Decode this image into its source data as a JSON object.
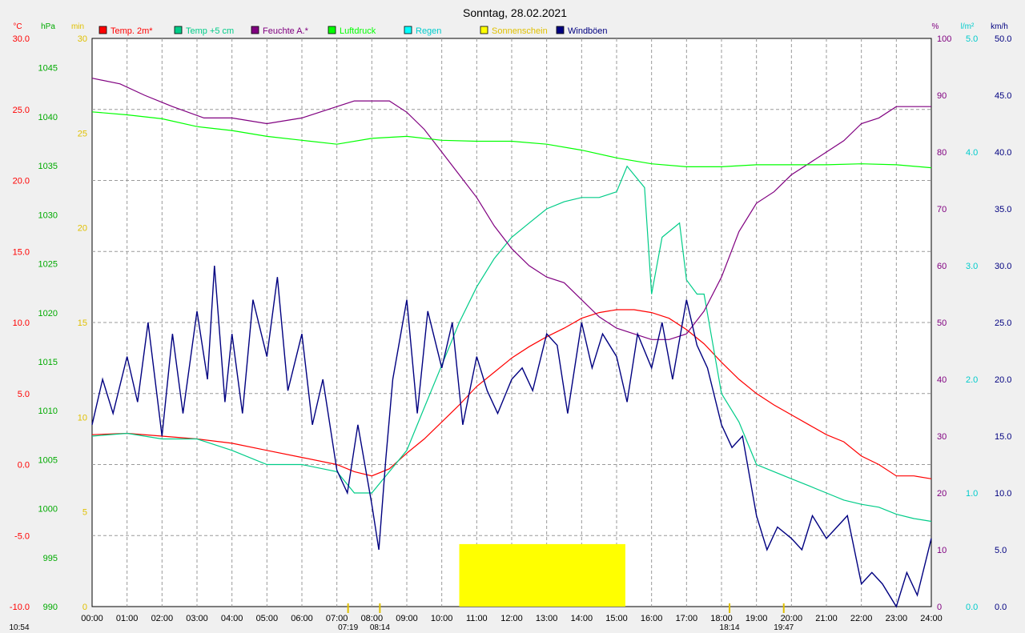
{
  "chart_data": {
    "type": "line",
    "title": "Sonntag, 28.02.2021",
    "x_ticks": [
      "00:00",
      "01:00",
      "02:00",
      "03:00",
      "04:00",
      "05:00",
      "06:00",
      "07:00",
      "08:00",
      "09:00",
      "10:00",
      "11:00",
      "12:00",
      "13:00",
      "14:00",
      "15:00",
      "16:00",
      "17:00",
      "18:00",
      "19:00",
      "20:00",
      "21:00",
      "22:00",
      "23:00",
      "24:00"
    ],
    "x_range_hours": [
      0,
      24
    ],
    "grid": true,
    "legend": [
      {
        "label": "Temp. 2m*",
        "color": "#ff0000"
      },
      {
        "label": "Temp +5 cm",
        "color": "#00cc88"
      },
      {
        "label": "Feuchte A.*",
        "color": "#800080"
      },
      {
        "label": "Luftdruck",
        "color": "#00ff00"
      },
      {
        "label": "Regen",
        "color": "#00ffff"
      },
      {
        "label": "Sonnenschein",
        "color": "#ffff00"
      },
      {
        "label": "Windböen",
        "color": "#000080"
      }
    ],
    "axes": {
      "temp": {
        "unit": "°C",
        "range": [
          -10,
          30
        ],
        "ticks": [
          "30.0",
          "25.0",
          "20.0",
          "15.0",
          "10.0",
          "5.0",
          "0.0",
          "-5.0",
          "-10.0"
        ],
        "color": "#ff0000"
      },
      "pressure": {
        "unit": "hPa",
        "range": [
          990,
          1048
        ],
        "ticks": [
          "1045",
          "1040",
          "1035",
          "1030",
          "1025",
          "1020",
          "1015",
          "1010",
          "1005",
          "1000",
          "995",
          "990"
        ],
        "color": "#00aa00"
      },
      "sun": {
        "unit": "min",
        "range": [
          0,
          30
        ],
        "ticks": [
          "30",
          "25",
          "20",
          "15",
          "10",
          "5",
          "0"
        ],
        "color": "#e0c000"
      },
      "humidity": {
        "unit": "%",
        "range": [
          0,
          100
        ],
        "ticks": [
          "100",
          "90",
          "80",
          "70",
          "60",
          "50",
          "40",
          "30",
          "20",
          "10",
          "0"
        ],
        "color": "#800080"
      },
      "rain": {
        "unit": "l/m²",
        "range": [
          0,
          5
        ],
        "ticks": [
          "5.0",
          "4.0",
          "3.0",
          "2.0",
          "1.0",
          "0.0"
        ],
        "color": "#00cccc"
      },
      "wind": {
        "unit": "km/h",
        "range": [
          0,
          50
        ],
        "ticks": [
          "50.0",
          "45.0",
          "40.0",
          "35.0",
          "30.0",
          "25.0",
          "20.0",
          "15.0",
          "10.0",
          "5.0",
          "0.0"
        ],
        "color": "#000080"
      }
    },
    "series": [
      {
        "name": "Temp. 2m*",
        "axis": "temp",
        "color": "#ff0000",
        "x": [
          0,
          1,
          2,
          3,
          4,
          5,
          6,
          7,
          7.5,
          8,
          8.5,
          9,
          9.5,
          10,
          10.5,
          11,
          11.5,
          12,
          12.5,
          13,
          13.5,
          14,
          14.5,
          15,
          15.5,
          16,
          16.5,
          17,
          17.5,
          18,
          18.5,
          19,
          19.5,
          20,
          20.5,
          21,
          21.5,
          22,
          22.5,
          23,
          23.5,
          24
        ],
        "y": [
          2.1,
          2.2,
          2.0,
          1.8,
          1.5,
          1.0,
          0.5,
          0.0,
          -0.5,
          -0.8,
          -0.3,
          0.8,
          1.8,
          3.0,
          4.2,
          5.5,
          6.5,
          7.5,
          8.3,
          9.0,
          9.6,
          10.3,
          10.7,
          10.9,
          10.9,
          10.7,
          10.3,
          9.5,
          8.5,
          7.2,
          6.0,
          5.0,
          4.2,
          3.5,
          2.8,
          2.1,
          1.6,
          0.6,
          0.0,
          -0.8,
          -0.8,
          -1.0
        ]
      },
      {
        "name": "Temp +5 cm",
        "axis": "temp",
        "color": "#00cc88",
        "x": [
          0,
          1,
          2,
          3,
          4,
          5,
          6,
          7,
          7.5,
          8,
          8.5,
          9,
          9.5,
          10,
          10.5,
          11,
          11.5,
          12,
          12.5,
          13,
          13.5,
          14,
          14.5,
          15,
          15.3,
          15.8,
          16,
          16.3,
          16.8,
          17,
          17.3,
          17.5,
          18,
          18.5,
          19,
          19.5,
          20,
          20.5,
          21,
          21.5,
          22,
          22.5,
          23,
          23.5,
          24
        ],
        "y": [
          2.0,
          2.2,
          1.8,
          1.8,
          1.0,
          0.0,
          0.0,
          -0.5,
          -2.0,
          -2.0,
          -0.5,
          1.0,
          4.0,
          7.0,
          10.0,
          12.5,
          14.5,
          16.0,
          17.0,
          18.0,
          18.5,
          18.8,
          18.8,
          19.2,
          21.0,
          19.5,
          12.0,
          16.0,
          17.0,
          13.0,
          12.0,
          12.0,
          5.0,
          3.0,
          0.0,
          -0.5,
          -1.0,
          -1.5,
          -2.0,
          -2.5,
          -2.8,
          -3.0,
          -3.5,
          -3.8,
          -4.0
        ]
      },
      {
        "name": "Feuchte A.*",
        "axis": "humidity",
        "color": "#800080",
        "x": [
          0,
          0.8,
          1.5,
          2.3,
          3.2,
          4,
          5,
          6,
          7,
          7.5,
          8,
          8.5,
          9,
          9.5,
          10,
          10.5,
          11,
          11.5,
          12,
          12.5,
          13,
          13.5,
          14,
          14.5,
          15,
          15.5,
          16,
          16.5,
          17,
          17.5,
          18,
          18.5,
          19,
          19.5,
          20,
          20.5,
          21,
          21.5,
          22,
          22.5,
          23,
          23.5,
          24
        ],
        "y": [
          93,
          92,
          90,
          88,
          86,
          86,
          85,
          86,
          88,
          89,
          89,
          89,
          87,
          84,
          80,
          76,
          72,
          67,
          63,
          60,
          58,
          57,
          54,
          51,
          49,
          48,
          47,
          47,
          48,
          52,
          58,
          66,
          71,
          73,
          76,
          78,
          80,
          82,
          85,
          86,
          88,
          88,
          88
        ]
      },
      {
        "name": "Luftdruck",
        "axis": "pressure",
        "color": "#00ff00",
        "x": [
          0,
          1,
          2,
          3,
          4,
          5,
          6,
          7,
          8,
          9,
          10,
          11,
          12,
          13,
          14,
          15,
          16,
          17,
          18,
          19,
          20,
          21,
          22,
          23,
          24
        ],
        "y": [
          1040.5,
          1040.2,
          1039.8,
          1039.0,
          1038.6,
          1038.0,
          1037.6,
          1037.2,
          1037.8,
          1038.0,
          1037.6,
          1037.5,
          1037.5,
          1037.2,
          1036.6,
          1035.8,
          1035.2,
          1034.9,
          1034.9,
          1035.1,
          1035.1,
          1035.1,
          1035.2,
          1035.1,
          1034.8
        ]
      },
      {
        "name": "Windböen",
        "axis": "wind",
        "color": "#000080",
        "x": [
          0,
          0.3,
          0.6,
          1,
          1.3,
          1.6,
          2,
          2.3,
          2.6,
          3,
          3.3,
          3.5,
          3.8,
          4,
          4.3,
          4.6,
          5,
          5.3,
          5.6,
          6,
          6.3,
          6.6,
          7,
          7.3,
          7.6,
          8,
          8.2,
          8.4,
          8.6,
          9,
          9.3,
          9.6,
          10,
          10.3,
          10.6,
          11,
          11.3,
          11.6,
          12,
          12.3,
          12.6,
          13,
          13.3,
          13.6,
          14,
          14.3,
          14.6,
          15,
          15.3,
          15.6,
          16,
          16.3,
          16.6,
          17,
          17.3,
          17.6,
          18,
          18.3,
          18.6,
          19,
          19.3,
          19.6,
          20,
          20.3,
          20.6,
          21,
          21.3,
          21.6,
          22,
          22.3,
          22.6,
          23,
          23.3,
          23.6,
          24
        ],
        "y": [
          16,
          20,
          17,
          22,
          18,
          25,
          15,
          24,
          17,
          26,
          20,
          30,
          18,
          24,
          17,
          27,
          22,
          29,
          19,
          24,
          16,
          20,
          12,
          10,
          16,
          9,
          5,
          13,
          20,
          27,
          17,
          26,
          21,
          25,
          16,
          22,
          19,
          17,
          20,
          21,
          19,
          24,
          23,
          17,
          25,
          21,
          24,
          22,
          18,
          24,
          21,
          25,
          20,
          27,
          23,
          21,
          16,
          14,
          15,
          8,
          5,
          7,
          6,
          5,
          8,
          6,
          7,
          8,
          2,
          3,
          2,
          0,
          3,
          1,
          6
        ]
      }
    ],
    "sunshine_bar": {
      "from": "10:30",
      "to": "15:15",
      "minutes": 3.3
    },
    "annotations": [
      {
        "label": "10:54",
        "x": -0.1
      },
      {
        "label": "07:19",
        "x": 7.32
      },
      {
        "label": "08:14",
        "x": 8.23
      },
      {
        "label": "18:14",
        "x": 18.23
      },
      {
        "label": "19:47",
        "x": 19.78
      }
    ]
  }
}
